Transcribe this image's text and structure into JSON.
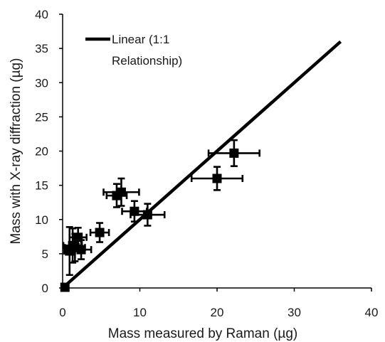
{
  "chart_data": {
    "type": "scatter",
    "title": "",
    "xlabel": "Mass measured by Raman (µg)",
    "ylabel": "Mass with X-ray diffraction (µg)",
    "xlim": [
      0,
      40
    ],
    "ylim": [
      0,
      40
    ],
    "x_ticks": [
      "0",
      "10",
      "20",
      "30",
      "40"
    ],
    "y_ticks": [
      "0",
      "5",
      "10",
      "15",
      "20",
      "25",
      "30",
      "35",
      "40"
    ],
    "grid": false,
    "legend_position": "top-left",
    "marker_color": "#000000",
    "line_color": "#000000",
    "points": [
      {
        "x": 0.3,
        "y": 0.1,
        "xerr": 0.3,
        "yerr": 0.2
      },
      {
        "x": 0.9,
        "y": 5.4,
        "xerr": 0.7,
        "yerr": 3.5
      },
      {
        "x": 1.3,
        "y": 6.2,
        "xerr": 1.2,
        "yerr": 2.5
      },
      {
        "x": 1.6,
        "y": 5.9,
        "xerr": 1.3,
        "yerr": 2.0
      },
      {
        "x": 2.0,
        "y": 7.4,
        "xerr": 1.1,
        "yerr": 1.4
      },
      {
        "x": 2.4,
        "y": 5.6,
        "xerr": 1.3,
        "yerr": 1.4
      },
      {
        "x": 4.8,
        "y": 8.1,
        "xerr": 1.2,
        "yerr": 1.4
      },
      {
        "x": 7.0,
        "y": 13.5,
        "xerr": 1.3,
        "yerr": 1.7
      },
      {
        "x": 7.6,
        "y": 14.0,
        "xerr": 2.3,
        "yerr": 2.0
      },
      {
        "x": 9.3,
        "y": 11.2,
        "xerr": 1.6,
        "yerr": 1.5
      },
      {
        "x": 11.0,
        "y": 10.7,
        "xerr": 2.2,
        "yerr": 1.6
      },
      {
        "x": 20.0,
        "y": 16.0,
        "xerr": 3.3,
        "yerr": 1.7
      },
      {
        "x": 22.2,
        "y": 19.7,
        "xerr": 3.3,
        "yerr": 1.9
      }
    ],
    "series": [
      {
        "name": "Linear (1:1 Relationship)",
        "x": [
          0,
          36
        ],
        "y": [
          0,
          36
        ]
      }
    ],
    "legend": {
      "lines": [
        "Linear (1:1",
        "Relationship)"
      ]
    }
  }
}
